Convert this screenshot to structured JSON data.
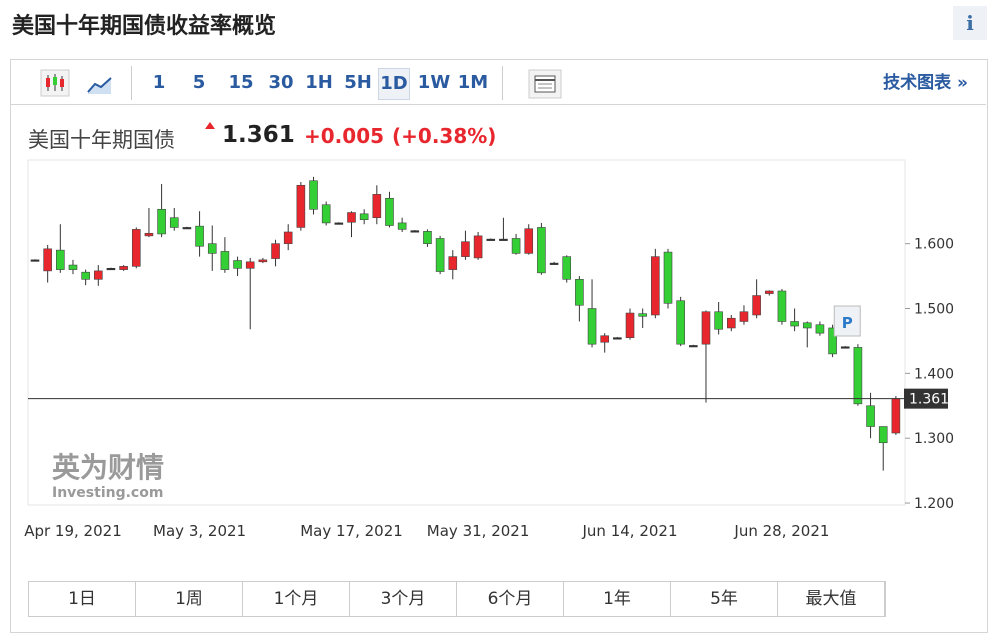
{
  "header": {
    "title": "美国十年期国债收益率概览",
    "info": "i"
  },
  "toolbar": {
    "intervals": [
      "1",
      "5",
      "15",
      "30",
      "1H",
      "5H",
      "1D",
      "1W",
      "1M"
    ],
    "selected": "1D",
    "link": "技术图表 »"
  },
  "quote": {
    "name": "美国十年期国债",
    "price": "1.361",
    "change": "+0.005",
    "change_pct": "(+0.38%)"
  },
  "watermark": {
    "brand": "英为财情",
    "site": "Investing.com"
  },
  "marker": "P",
  "ranges": [
    "1日",
    "1周",
    "1个月",
    "3个月",
    "6个月",
    "1年",
    "5年",
    "最大值"
  ],
  "chart_data": {
    "type": "candlestick",
    "categories": [
      null,
      null,
      null,
      "Apr 19, 2021",
      null,
      null,
      null,
      null,
      null,
      null,
      null,
      null,
      null,
      "May 3, 2021",
      null,
      null,
      null,
      null,
      null,
      null,
      null,
      null,
      null,
      null,
      null,
      "May 17, 2021",
      null,
      null,
      null,
      null,
      null,
      null,
      null,
      null,
      null,
      "May 31, 2021",
      null,
      null,
      null,
      null,
      null,
      null,
      null,
      null,
      null,
      null,
      null,
      "Jun 14, 2021",
      null,
      null,
      null,
      null,
      null,
      null,
      null,
      null,
      null,
      null,
      null,
      "Jun 28, 2021",
      null,
      null,
      null,
      null,
      null,
      null,
      null,
      null,
      null
    ],
    "open": [
      1.575,
      1.558,
      1.59,
      1.567,
      1.556,
      1.545,
      1.562,
      1.56,
      1.565,
      1.612,
      1.653,
      1.64,
      1.625,
      1.627,
      1.6,
      1.588,
      1.574,
      1.562,
      1.572,
      1.577,
      1.6,
      1.625,
      1.697,
      1.66,
      1.632,
      1.633,
      1.646,
      1.64,
      1.67,
      1.632,
      1.62,
      1.619,
      1.608,
      1.56,
      1.58,
      1.578,
      1.607,
      1.607,
      1.608,
      1.585,
      1.625,
      1.57,
      1.58,
      1.545,
      1.5,
      1.448,
      1.455,
      1.455,
      1.492,
      1.49,
      1.587,
      1.512,
      1.443,
      1.445,
      1.495,
      1.47,
      1.48,
      1.49,
      1.523,
      1.527,
      1.48,
      1.478,
      1.475,
      1.47,
      1.441,
      1.44,
      1.35,
      1.318,
      1.308
    ],
    "high": [
      1.576,
      1.598,
      1.63,
      1.575,
      1.56,
      1.567,
      1.563,
      1.567,
      1.625,
      1.655,
      1.692,
      1.655,
      1.626,
      1.65,
      1.628,
      1.61,
      1.58,
      1.578,
      1.578,
      1.606,
      1.63,
      1.695,
      1.703,
      1.665,
      1.633,
      1.65,
      1.653,
      1.69,
      1.68,
      1.64,
      1.621,
      1.622,
      1.612,
      1.59,
      1.62,
      1.618,
      1.608,
      1.64,
      1.615,
      1.63,
      1.632,
      1.572,
      1.582,
      1.55,
      1.545,
      1.462,
      1.456,
      1.5,
      1.5,
      1.592,
      1.592,
      1.518,
      1.444,
      1.497,
      1.51,
      1.49,
      1.505,
      1.545,
      1.528,
      1.53,
      1.5,
      1.48,
      1.48,
      1.475,
      1.442,
      1.445,
      1.37,
      1.318,
      1.365
    ],
    "low": [
      1.574,
      1.54,
      1.555,
      1.553,
      1.536,
      1.535,
      1.561,
      1.558,
      1.562,
      1.61,
      1.61,
      1.62,
      1.624,
      1.58,
      1.558,
      1.555,
      1.55,
      1.468,
      1.57,
      1.565,
      1.59,
      1.62,
      1.645,
      1.628,
      1.631,
      1.61,
      1.63,
      1.63,
      1.625,
      1.618,
      1.619,
      1.595,
      1.553,
      1.545,
      1.575,
      1.575,
      1.606,
      1.605,
      1.583,
      1.583,
      1.552,
      1.568,
      1.54,
      1.48,
      1.44,
      1.432,
      1.454,
      1.452,
      1.47,
      1.485,
      1.5,
      1.442,
      1.442,
      1.355,
      1.46,
      1.465,
      1.475,
      1.485,
      1.52,
      1.475,
      1.465,
      1.44,
      1.458,
      1.425,
      1.44,
      1.35,
      1.3,
      1.25,
      1.305
    ],
    "close": [
      1.575,
      1.592,
      1.56,
      1.56,
      1.545,
      1.558,
      1.562,
      1.565,
      1.622,
      1.616,
      1.615,
      1.625,
      1.625,
      1.596,
      1.585,
      1.56,
      1.562,
      1.572,
      1.575,
      1.6,
      1.618,
      1.69,
      1.653,
      1.632,
      1.632,
      1.648,
      1.637,
      1.676,
      1.628,
      1.622,
      1.62,
      1.6,
      1.557,
      1.58,
      1.603,
      1.612,
      1.607,
      1.607,
      1.585,
      1.623,
      1.555,
      1.57,
      1.545,
      1.505,
      1.445,
      1.458,
      1.455,
      1.493,
      1.488,
      1.58,
      1.508,
      1.445,
      1.443,
      1.495,
      1.468,
      1.485,
      1.495,
      1.52,
      1.527,
      1.48,
      1.473,
      1.47,
      1.462,
      1.43,
      1.441,
      1.353,
      1.318,
      1.293,
      1.361
    ],
    "up_color": "#e8262d",
    "down_color": "#34cf34",
    "ylim": [
      1.197,
      1.729
    ],
    "yticks": [
      {
        "value": 1.2,
        "label": "1.200"
      },
      {
        "value": 1.3,
        "label": "1.300"
      },
      {
        "value": 1.4,
        "label": "1.400"
      },
      {
        "value": 1.5,
        "label": "1.500"
      },
      {
        "value": 1.6,
        "label": "1.600"
      }
    ],
    "current": {
      "value": 1.361,
      "label": "1.361"
    }
  }
}
